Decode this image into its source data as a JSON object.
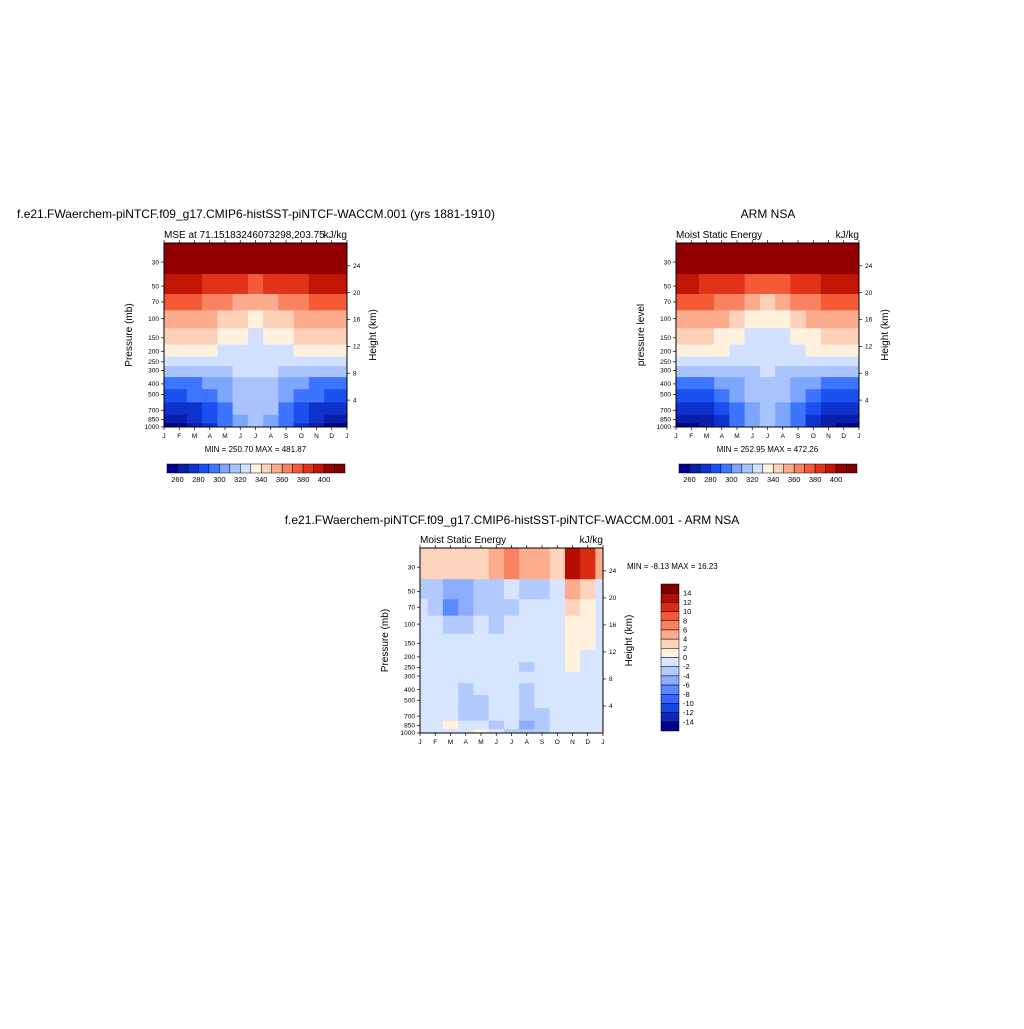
{
  "colors": {
    "mse_scale": [
      "#00008c",
      "#0a1fa8",
      "#0d33cc",
      "#1a4ff0",
      "#3d75ff",
      "#7fa6ff",
      "#a9c3ff",
      "#d2e1ff",
      "#fff1de",
      "#fdd0b8",
      "#fcac8c",
      "#f98360",
      "#f35a35",
      "#e23219",
      "#c11605",
      "#940000",
      "#800000"
    ],
    "diff_scale": [
      "#00008c",
      "#0d29b8",
      "#1548e0",
      "#3366ff",
      "#5c89ff",
      "#8cacff",
      "#b3caff",
      "#d8e5ff",
      "#fff1de",
      "#fdd3bb",
      "#fcac8c",
      "#f98360",
      "#f35a35",
      "#d92b12",
      "#b30e00",
      "#800000"
    ],
    "frame": "#000000"
  },
  "panels": [
    {
      "title": "f.e21.FWaerchem-piNTCF.f09_g17.CMIP6-histSST-piNTCF-WACCM.001 (yrs 1881-1910)",
      "left_label": "MSE at 71.15183246073298,203.75",
      "right_label": "kJ/kg",
      "ylabel": "Pressure (mb)",
      "ylabel_right": "Height (km)",
      "minmax": "MIN = 250.70 MAX = 481.87",
      "colorbar_labels": [
        "260",
        "280",
        "300",
        "320",
        "340",
        "360",
        "380",
        "400"
      ]
    },
    {
      "title": "ARM NSA",
      "left_label": "Moist Static Energy",
      "right_label": "kJ/kg",
      "ylabel": "pressure level",
      "ylabel_right": "Height (km)",
      "minmax": "MIN = 252.95 MAX = 472.26",
      "colorbar_labels": [
        "260",
        "280",
        "300",
        "320",
        "340",
        "360",
        "380",
        "400"
      ]
    },
    {
      "title": "f.e21.FWaerchem-piNTCF.f09_g17.CMIP6-histSST-piNTCF-WACCM.001 - ARM NSA",
      "left_label": "Moist Static Energy",
      "right_label": "kJ/kg",
      "ylabel": "Pressure (mb)",
      "ylabel_right": "Height (km)",
      "minmax": "MIN =  -8.13 MAX =  16.23",
      "colorbar_labels": [
        "14",
        "12",
        "10",
        "8",
        "6",
        "4",
        "2",
        "0",
        "-2",
        "-4",
        "-6",
        "-8",
        "-10",
        "-12",
        "-14"
      ]
    }
  ],
  "chart_data": [
    {
      "type": "heatmap",
      "title": "f.e21.FWaerchem-piNTCF.f09_g17.CMIP6-histSST-piNTCF-WACCM.001 (yrs 1881-1910)",
      "variable": "MSE at 71.15183246073298,203.75",
      "units": "kJ/kg",
      "x": [
        "J",
        "F",
        "M",
        "A",
        "M",
        "J",
        "J",
        "A",
        "S",
        "O",
        "N",
        "D",
        "J"
      ],
      "y": [
        30,
        50,
        70,
        100,
        150,
        200,
        250,
        300,
        400,
        500,
        700,
        850,
        1000
      ],
      "y_right": [
        4,
        8,
        12,
        16,
        20,
        24
      ],
      "xlabel": "",
      "ylabel": "Pressure (mb)",
      "ylabel_right": "Height (km)",
      "y_scale": "log, inverted",
      "levels": [
        260,
        270,
        280,
        290,
        300,
        310,
        320,
        330,
        340,
        350,
        360,
        370,
        380,
        390,
        400
      ],
      "values": [
        [
          408,
          408,
          408,
          408,
          407,
          406,
          405,
          406,
          407,
          408,
          408,
          408,
          408
        ],
        [
          392,
          391,
          390,
          389,
          386,
          380,
          376,
          380,
          386,
          389,
          391,
          392,
          392
        ],
        [
          373,
          372,
          371,
          369,
          364,
          356,
          350,
          356,
          364,
          369,
          371,
          372,
          373
        ],
        [
          359,
          358,
          357,
          354,
          348,
          340,
          334,
          340,
          348,
          354,
          357,
          358,
          359
        ],
        [
          344,
          343,
          342,
          340,
          335,
          330,
          326,
          330,
          335,
          340,
          342,
          343,
          344
        ],
        [
          333,
          333,
          332,
          331,
          329,
          327,
          325,
          327,
          329,
          331,
          332,
          333,
          333
        ],
        [
          325,
          325,
          325,
          325,
          324,
          323,
          322,
          323,
          324,
          325,
          325,
          325,
          325
        ],
        [
          314,
          313,
          313,
          314,
          317,
          320,
          321,
          320,
          317,
          314,
          313,
          313,
          314
        ],
        [
          297,
          297,
          299,
          302,
          309,
          316,
          319,
          316,
          309,
          302,
          299,
          297,
          297
        ],
        [
          286,
          287,
          290,
          295,
          304,
          314,
          318,
          314,
          304,
          295,
          290,
          287,
          286
        ],
        [
          272,
          274,
          278,
          286,
          298,
          310,
          315,
          310,
          298,
          286,
          278,
          274,
          272
        ],
        [
          263,
          265,
          270,
          280,
          294,
          308,
          314,
          308,
          294,
          280,
          270,
          265,
          263
        ],
        [
          256,
          258,
          263,
          275,
          291,
          306,
          313,
          306,
          291,
          275,
          263,
          258,
          256
        ]
      ],
      "minmax": "MIN = 250.70 MAX = 481.87"
    },
    {
      "type": "heatmap",
      "title": "ARM NSA",
      "variable": "Moist Static Energy",
      "units": "kJ/kg",
      "x": [
        "J",
        "F",
        "M",
        "A",
        "M",
        "J",
        "J",
        "A",
        "S",
        "O",
        "N",
        "D",
        "J"
      ],
      "y": [
        30,
        50,
        70,
        100,
        150,
        200,
        250,
        300,
        400,
        500,
        700,
        850,
        1000
      ],
      "y_right": [
        4,
        8,
        12,
        16,
        20,
        24
      ],
      "xlabel": "",
      "ylabel": "pressure level",
      "ylabel_right": "Height (km)",
      "y_scale": "log, inverted",
      "levels": [
        260,
        270,
        280,
        290,
        300,
        310,
        320,
        330,
        340,
        350,
        360,
        370,
        380,
        390,
        400
      ],
      "values": [
        [
          408,
          408,
          408,
          408,
          407,
          406,
          405,
          406,
          407,
          408,
          408,
          408,
          408
        ],
        [
          391,
          390,
          389,
          388,
          385,
          379,
          375,
          379,
          385,
          388,
          390,
          391,
          391
        ],
        [
          371,
          371,
          370,
          368,
          363,
          355,
          349,
          355,
          363,
          368,
          370,
          371,
          371
        ],
        [
          357,
          356,
          355,
          353,
          347,
          339,
          333,
          339,
          347,
          353,
          355,
          356,
          357
        ],
        [
          343,
          342,
          341,
          339,
          334,
          329,
          325,
          329,
          334,
          339,
          341,
          342,
          343
        ],
        [
          332,
          332,
          331,
          330,
          328,
          326,
          324,
          326,
          328,
          330,
          331,
          332,
          332
        ],
        [
          324,
          324,
          324,
          324,
          323,
          322,
          321,
          322,
          323,
          324,
          324,
          324,
          324
        ],
        [
          313,
          312,
          312,
          313,
          316,
          319,
          320,
          319,
          316,
          313,
          312,
          312,
          313
        ],
        [
          296,
          296,
          298,
          301,
          308,
          315,
          318,
          315,
          308,
          301,
          298,
          296,
          296
        ],
        [
          285,
          286,
          289,
          294,
          303,
          313,
          317,
          313,
          303,
          294,
          289,
          286,
          285
        ],
        [
          271,
          273,
          277,
          285,
          297,
          309,
          314,
          309,
          297,
          285,
          277,
          273,
          271
        ],
        [
          262,
          264,
          269,
          279,
          293,
          307,
          313,
          307,
          293,
          279,
          269,
          264,
          262
        ],
        [
          255,
          257,
          262,
          274,
          290,
          305,
          312,
          305,
          290,
          274,
          262,
          257,
          255
        ]
      ],
      "minmax": "MIN = 252.95 MAX = 472.26"
    },
    {
      "type": "heatmap",
      "title": "f.e21.FWaerchem-piNTCF.f09_g17.CMIP6-histSST-piNTCF-WACCM.001 - ARM NSA",
      "variable": "Moist Static Energy",
      "units": "kJ/kg",
      "x": [
        "J",
        "F",
        "M",
        "A",
        "M",
        "J",
        "J",
        "A",
        "S",
        "O",
        "N",
        "D",
        "J"
      ],
      "y": [
        30,
        50,
        70,
        100,
        150,
        200,
        250,
        300,
        400,
        500,
        700,
        850,
        1000
      ],
      "y_right": [
        4,
        8,
        12,
        16,
        20,
        24
      ],
      "xlabel": "",
      "ylabel": "Pressure (mb)",
      "ylabel_right": "Height (km)",
      "y_scale": "log, inverted",
      "levels": [
        -14,
        -12,
        -10,
        -8,
        -6,
        -4,
        -2,
        0,
        2,
        4,
        6,
        8,
        10,
        12,
        14
      ],
      "values": [
        [
          2,
          2,
          2,
          2,
          3,
          5,
          6,
          5,
          4,
          3,
          12,
          10,
          4
        ],
        [
          -3,
          -4,
          -6,
          -5,
          -3,
          -3,
          -2,
          -3,
          -3,
          -2,
          4,
          3,
          -1
        ],
        [
          -2,
          -3,
          -7,
          -5,
          -3,
          -4,
          -3,
          -2,
          -2,
          -1,
          2,
          1,
          -1
        ],
        [
          -2,
          -2,
          -4,
          -3,
          -2,
          -3,
          -2,
          -1,
          -1,
          -1,
          1,
          0,
          -1
        ],
        [
          -1,
          -2,
          -2,
          -2,
          -1,
          -1,
          -1,
          -1,
          -1,
          -1,
          1,
          0,
          -1
        ],
        [
          -1,
          -1,
          -2,
          -1,
          -1,
          -1,
          -1,
          -1,
          -1,
          -1,
          0,
          -1,
          -1
        ],
        [
          -1,
          -1,
          -2,
          -1,
          -1,
          -1,
          -1,
          -3,
          -2,
          -1,
          0,
          -1,
          -1
        ],
        [
          -1,
          -1,
          -2,
          -1,
          -1,
          -1,
          -1,
          -2,
          -2,
          -1,
          -1,
          -1,
          -1
        ],
        [
          -1,
          -2,
          -2,
          -3,
          -2,
          -1,
          -2,
          -3,
          -2,
          -1,
          -1,
          -1,
          -1
        ],
        [
          -1,
          -2,
          -2,
          -3,
          -3,
          -1,
          -2,
          -3,
          -2,
          -1,
          -1,
          -1,
          -1
        ],
        [
          -1,
          -1,
          -2,
          -3,
          -3,
          -2,
          -2,
          -4,
          -3,
          -1,
          -1,
          -1,
          -1
        ],
        [
          -1,
          -1,
          1,
          -1,
          -1,
          -3,
          -2,
          -6,
          -3,
          -1,
          -1,
          -1,
          -1
        ],
        [
          -2,
          -2,
          -2,
          -2,
          1,
          -2,
          -3,
          -4,
          -3,
          -2,
          -2,
          -2,
          -2
        ]
      ],
      "minmax": "MIN =  -8.13 MAX =  16.23"
    }
  ]
}
